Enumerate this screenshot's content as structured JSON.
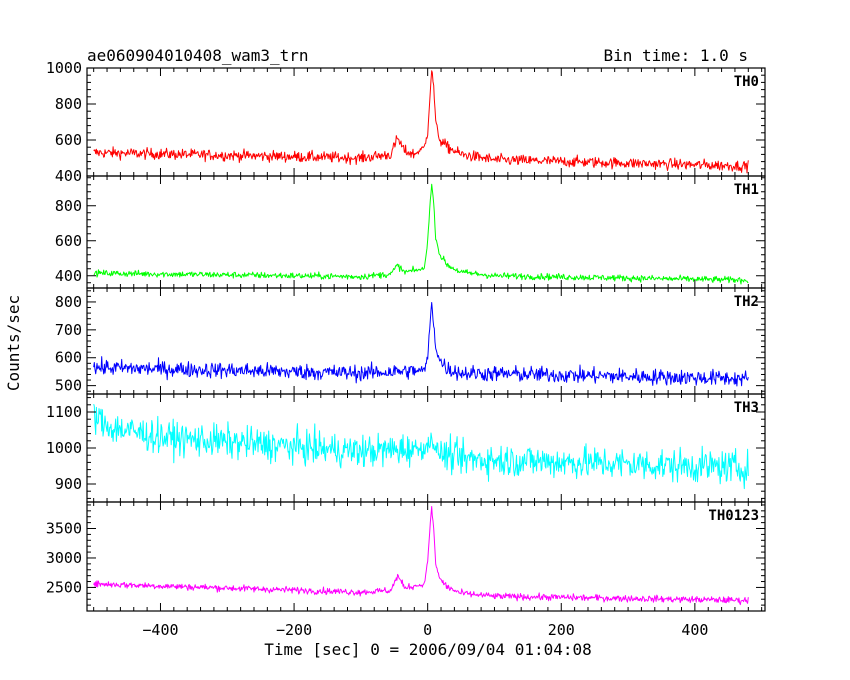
{
  "chart_data": {
    "type": "line",
    "title": "ae060904010408_wam3_trn",
    "subtitle": "Bin time: 1.0 s",
    "xlabel": "Time [sec] 0 = 2006/09/04 01:04:08",
    "ylabel": "Counts/sec",
    "xlim": [
      -510,
      505
    ],
    "xticks": [
      "−400",
      "−200",
      "0",
      "200",
      "400"
    ],
    "xtick_values": [
      -400,
      -200,
      0,
      200,
      400
    ],
    "grid": false,
    "panels": [
      {
        "name": "TH0",
        "color": "#ff0000",
        "ylim": [
          400,
          1000
        ],
        "yticks": [
          "400",
          "600",
          "800",
          "1000"
        ],
        "ytick_values": [
          400,
          600,
          800,
          1000
        ],
        "series": {
          "name": "TH0",
          "base_start": 530,
          "base_end": 455,
          "noise": 30,
          "x": [
            -500,
            -100,
            -55,
            -45,
            -35,
            -20,
            -5,
            0,
            3,
            6,
            9,
            12,
            18,
            30,
            50,
            100,
            480
          ],
          "y": [
            530,
            500,
            520,
            610,
            540,
            520,
            560,
            640,
            820,
            990,
            900,
            700,
            600,
            560,
            520,
            490,
            455
          ]
        }
      },
      {
        "name": "TH1",
        "color": "#00ff00",
        "ylim": [
          330,
          970
        ],
        "yticks": [
          "400",
          "600",
          "800"
        ],
        "ytick_values": [
          400,
          600,
          800
        ],
        "series": {
          "name": "TH1",
          "base_start": 415,
          "base_end": 375,
          "noise": 18,
          "x": [
            -500,
            -100,
            -55,
            -45,
            -35,
            -5,
            0,
            3,
            6,
            9,
            12,
            18,
            30,
            50,
            100,
            480
          ],
          "y": [
            415,
            395,
            410,
            460,
            420,
            440,
            600,
            780,
            920,
            820,
            620,
            520,
            460,
            420,
            400,
            375
          ]
        }
      },
      {
        "name": "TH2",
        "color": "#0000ff",
        "ylim": [
          470,
          850
        ],
        "yticks": [
          "500",
          "600",
          "700",
          "800"
        ],
        "ytick_values": [
          500,
          600,
          700,
          800
        ],
        "series": {
          "name": "TH2",
          "base_start": 565,
          "base_end": 525,
          "noise": 28,
          "x": [
            -500,
            -100,
            -5,
            0,
            3,
            6,
            9,
            12,
            18,
            30,
            50,
            480
          ],
          "y": [
            565,
            545,
            555,
            600,
            700,
            800,
            720,
            640,
            590,
            560,
            545,
            525
          ]
        }
      },
      {
        "name": "TH3",
        "color": "#00ffff",
        "ylim": [
          850,
          1150
        ],
        "yticks": [
          "900",
          "1000",
          "1100"
        ],
        "ytick_values": [
          900,
          1000,
          1100
        ],
        "series": {
          "name": "TH3",
          "base_start": 1060,
          "base_end": 945,
          "noise": 45,
          "x": [
            -500,
            -480,
            -400,
            -100,
            0,
            5,
            12,
            50,
            480
          ],
          "y": [
            1090,
            1060,
            1030,
            990,
            1000,
            1040,
            990,
            970,
            945
          ]
        }
      },
      {
        "name": "TH0123",
        "color": "#ff00ff",
        "ylim": [
          2100,
          3950
        ],
        "yticks": [
          "2500",
          "3000",
          "3500"
        ],
        "ytick_values": [
          2500,
          3000,
          3500
        ],
        "series": {
          "name": "TH0123",
          "base_start": 2560,
          "base_end": 2280,
          "noise": 55,
          "x": [
            -500,
            -100,
            -55,
            -45,
            -35,
            -5,
            0,
            3,
            6,
            9,
            12,
            18,
            30,
            50,
            100,
            480
          ],
          "y": [
            2560,
            2420,
            2450,
            2700,
            2500,
            2550,
            2950,
            3450,
            3850,
            3500,
            2900,
            2650,
            2500,
            2400,
            2350,
            2280
          ]
        }
      }
    ]
  }
}
